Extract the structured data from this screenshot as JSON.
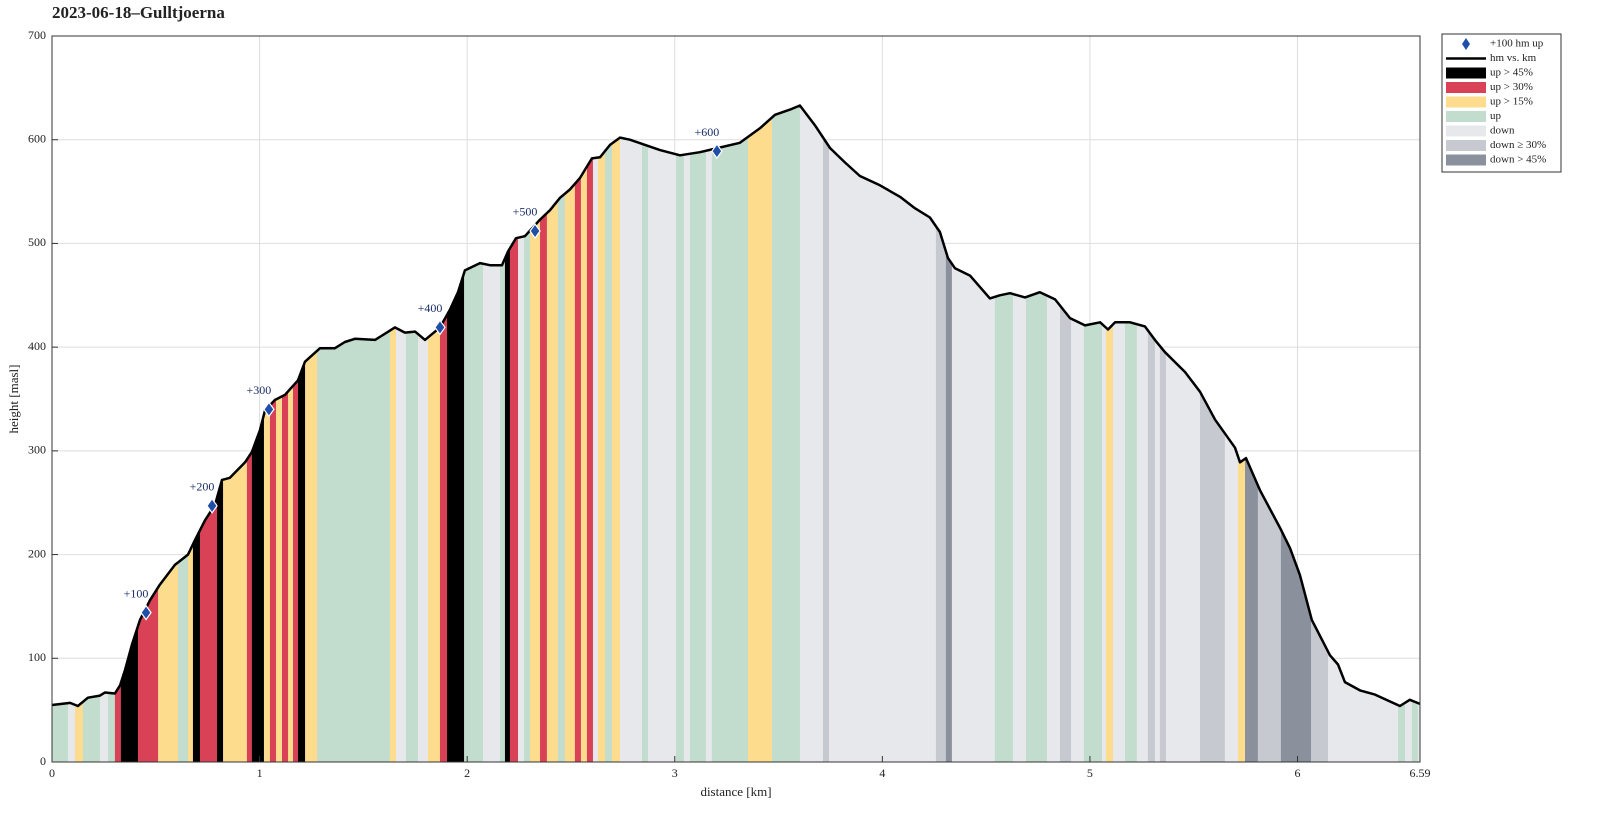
{
  "chart_data": {
    "type": "elevation_profile",
    "title": "2023-06-18–Gulltjoerna",
    "xlabel": "distance [km]",
    "ylabel": "height [masl]",
    "xlim": [
      0,
      6.59
    ],
    "ylim": [
      0,
      700
    ],
    "xticks": [
      0,
      1,
      2,
      3,
      4,
      5,
      6,
      6.59
    ],
    "yticks": [
      0,
      100,
      200,
      300,
      400,
      500,
      600,
      700
    ],
    "grid": true,
    "legend": "outside-right",
    "profile": {
      "name": "hm vs. km",
      "color": "#000000",
      "x": [
        0,
        0.087,
        0.125,
        0.173,
        0.231,
        0.255,
        0.303,
        0.328,
        0.352,
        0.385,
        0.424,
        0.472,
        0.52,
        0.592,
        0.655,
        0.689,
        0.737,
        0.785,
        0.819,
        0.857,
        0.93,
        0.963,
        1.002,
        1.026,
        1.074,
        1.122,
        1.185,
        1.219,
        1.291,
        1.363,
        1.411,
        1.459,
        1.556,
        1.604,
        1.652,
        1.7,
        1.749,
        1.797,
        1.869,
        1.917,
        1.956,
        1.989,
        2.062,
        2.11,
        2.168,
        2.196,
        2.235,
        2.278,
        2.351,
        2.399,
        2.447,
        2.495,
        2.543,
        2.601,
        2.64,
        2.688,
        2.736,
        2.784,
        2.857,
        2.929,
        3.025,
        3.121,
        3.208,
        3.314,
        3.41,
        3.483,
        3.555,
        3.603,
        3.675,
        3.748,
        3.82,
        3.892,
        3.988,
        4.085,
        4.157,
        4.229,
        4.277,
        4.316,
        4.35,
        4.422,
        4.518,
        4.566,
        4.615,
        4.687,
        4.759,
        4.832,
        4.904,
        4.976,
        5.049,
        5.087,
        5.121,
        5.193,
        5.265,
        5.313,
        5.362,
        5.458,
        5.53,
        5.603,
        5.699,
        5.723,
        5.752,
        5.819,
        5.915,
        5.964,
        6.012,
        6.069,
        6.156,
        6.195,
        6.228,
        6.301,
        6.373,
        6.493,
        6.541,
        6.59
      ],
      "values": [
        55,
        57,
        54,
        62,
        64,
        67,
        66,
        74,
        89,
        113,
        137,
        156,
        171,
        190,
        200,
        214,
        233,
        248,
        272,
        274,
        289,
        299,
        320,
        339,
        349,
        354,
        368,
        386,
        399,
        399,
        405,
        408,
        407,
        413,
        419,
        414,
        415,
        407,
        419,
        436,
        453,
        474,
        481,
        479,
        479,
        492,
        505,
        507,
        523,
        532,
        544,
        552,
        563,
        582,
        583,
        595,
        602,
        600,
        595,
        590,
        585,
        588,
        592,
        597,
        611,
        624,
        629,
        633,
        614,
        592,
        578,
        565,
        556,
        545,
        534,
        525,
        511,
        486,
        476,
        469,
        447,
        450,
        452,
        448,
        453,
        446,
        428,
        421,
        424,
        417,
        424,
        424,
        420,
        407,
        395,
        376,
        357,
        330,
        303,
        289,
        293,
        262,
        226,
        206,
        180,
        137,
        103,
        94,
        77,
        69,
        65,
        54,
        60,
        56
      ]
    },
    "markers": {
      "name": "+100 hm up",
      "color": "#1f4fa8",
      "x": [
        0.453,
        0.771,
        1.045,
        1.869,
        2.327,
        3.203
      ],
      "values": [
        144,
        247,
        340,
        419,
        512,
        589
      ],
      "labels": [
        "+100",
        "+200",
        "+300",
        "+400",
        "+500",
        "+600"
      ]
    },
    "bands": {
      "names": [
        "up > 45%",
        "up > 30%",
        "up > 15%",
        "up",
        "down",
        "down ≥ 30%",
        "down > 45%"
      ],
      "colors": [
        "#000000",
        "#d94156",
        "#fddc8e",
        "#c2ddcd",
        "#e7e8ec",
        "#c6c9d0",
        "#8b919c"
      ],
      "edges": [
        0,
        0.077,
        0.111,
        0.149,
        0.231,
        0.27,
        0.303,
        0.332,
        0.414,
        0.511,
        0.607,
        0.655,
        0.679,
        0.713,
        0.795,
        0.824,
        0.939,
        0.963,
        1.021,
        1.05,
        1.079,
        1.108,
        1.137,
        1.161,
        1.185,
        1.219,
        1.277,
        1.628,
        1.657,
        1.705,
        1.763,
        1.811,
        1.869,
        1.903,
        1.985,
        2.076,
        2.158,
        2.182,
        2.206,
        2.245,
        2.274,
        2.303,
        2.351,
        2.384,
        2.437,
        2.471,
        2.519,
        2.548,
        2.577,
        2.606,
        2.63,
        2.664,
        2.698,
        2.736,
        2.842,
        2.871,
        3.006,
        3.044,
        3.073,
        3.15,
        3.179,
        3.353,
        3.468,
        3.603,
        3.714,
        3.743,
        4.258,
        4.306,
        4.335,
        4.542,
        4.629,
        4.692,
        4.793,
        4.856,
        4.909,
        4.971,
        5.058,
        5.077,
        5.111,
        5.169,
        5.226,
        5.279,
        5.313,
        5.337,
        5.366,
        5.53,
        5.65,
        5.713,
        5.747,
        5.809,
        5.92,
        6.065,
        6.147,
        6.484,
        6.518,
        6.551,
        6.58,
        6.59
      ],
      "class": [
        3,
        4,
        2,
        3,
        4,
        3,
        1,
        0,
        1,
        2,
        3,
        2,
        0,
        1,
        0,
        2,
        1,
        0,
        2,
        1,
        2,
        1,
        2,
        1,
        0,
        2,
        3,
        2,
        4,
        3,
        4,
        2,
        1,
        0,
        3,
        4,
        3,
        0,
        1,
        4,
        3,
        2,
        1,
        2,
        3,
        2,
        1,
        2,
        1,
        4,
        2,
        3,
        2,
        4,
        3,
        4,
        3,
        4,
        3,
        4,
        3,
        2,
        3,
        4,
        5,
        4,
        5,
        6,
        4,
        3,
        4,
        3,
        4,
        5,
        4,
        3,
        4,
        2,
        4,
        3,
        4,
        5,
        4,
        5,
        4,
        5,
        4,
        2,
        6,
        5,
        6,
        5,
        4,
        3,
        4,
        3,
        4
      ]
    }
  }
}
